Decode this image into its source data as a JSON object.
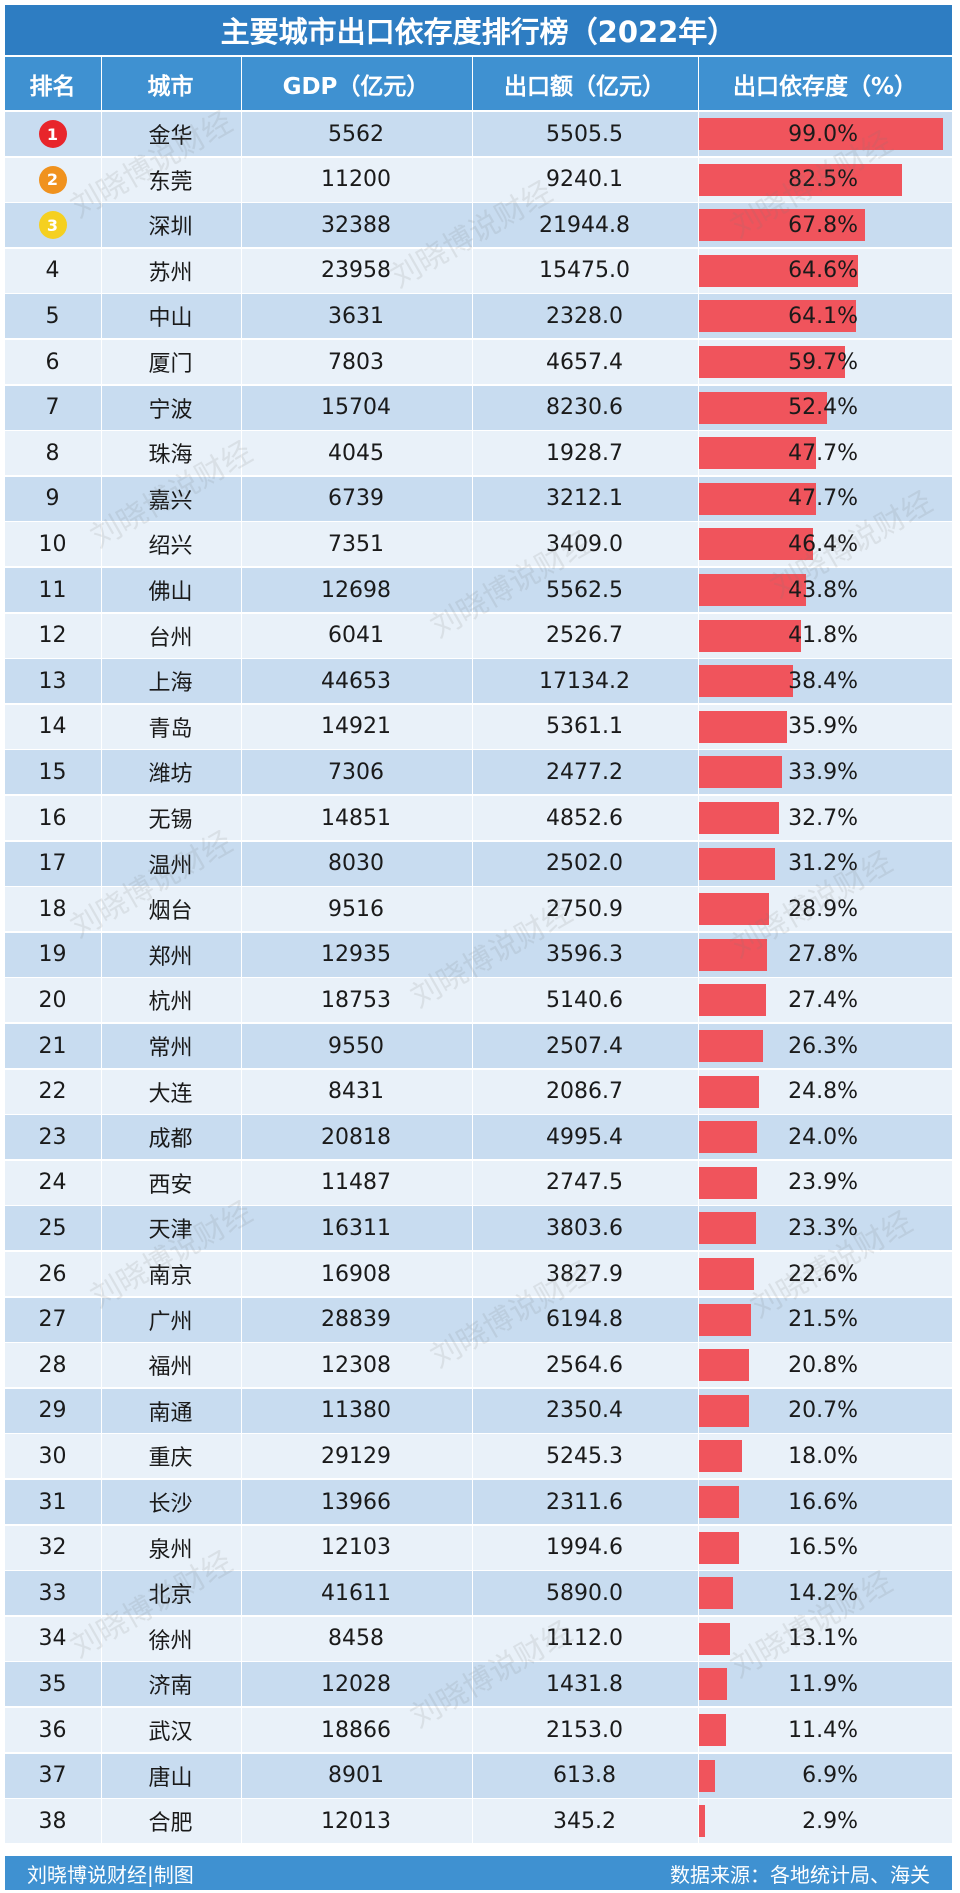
{
  "title": "主要城市出口依存度排行榜（2022年）",
  "headers": {
    "rank": "排名",
    "city": "城市",
    "gdp": "GDP（亿元）",
    "export": "出口额（亿元）",
    "ratio": "出口依存度（%）"
  },
  "footer": {
    "left": "刘晓博说财经|制图",
    "right": "数据来源：各地统计局、海关"
  },
  "watermark": "刘晓博说财经",
  "colors": {
    "title_bg": "#2e7dc2",
    "header_bg": "#3f91d1",
    "row_odd": "#c8dcf0",
    "row_even": "#e9f1f9",
    "bar": "#f0545c",
    "badge_gold": "#f5d020",
    "badge_silver": "#f0921e",
    "badge_first": "#e8252b"
  },
  "chart_data": {
    "type": "table",
    "title": "主要城市出口依存度排行榜（2022年）",
    "columns": [
      "排名",
      "城市",
      "GDP（亿元）",
      "出口额（亿元）",
      "出口依存度（%）"
    ],
    "rows": [
      {
        "rank": "1",
        "city": "金华",
        "gdp": "5562",
        "export": "5505.5",
        "ratio": 99.0,
        "label": "99.0%"
      },
      {
        "rank": "2",
        "city": "东莞",
        "gdp": "11200",
        "export": "9240.1",
        "ratio": 82.5,
        "label": "82.5%"
      },
      {
        "rank": "3",
        "city": "深圳",
        "gdp": "32388",
        "export": "21944.8",
        "ratio": 67.8,
        "label": "67.8%"
      },
      {
        "rank": "4",
        "city": "苏州",
        "gdp": "23958",
        "export": "15475.0",
        "ratio": 64.6,
        "label": "64.6%"
      },
      {
        "rank": "5",
        "city": "中山",
        "gdp": "3631",
        "export": "2328.0",
        "ratio": 64.1,
        "label": "64.1%"
      },
      {
        "rank": "6",
        "city": "厦门",
        "gdp": "7803",
        "export": "4657.4",
        "ratio": 59.7,
        "label": "59.7%"
      },
      {
        "rank": "7",
        "city": "宁波",
        "gdp": "15704",
        "export": "8230.6",
        "ratio": 52.4,
        "label": "52.4%"
      },
      {
        "rank": "8",
        "city": "珠海",
        "gdp": "4045",
        "export": "1928.7",
        "ratio": 47.7,
        "label": "47.7%"
      },
      {
        "rank": "9",
        "city": "嘉兴",
        "gdp": "6739",
        "export": "3212.1",
        "ratio": 47.7,
        "label": "47.7%"
      },
      {
        "rank": "10",
        "city": "绍兴",
        "gdp": "7351",
        "export": "3409.0",
        "ratio": 46.4,
        "label": "46.4%"
      },
      {
        "rank": "11",
        "city": "佛山",
        "gdp": "12698",
        "export": "5562.5",
        "ratio": 43.8,
        "label": "43.8%"
      },
      {
        "rank": "12",
        "city": "台州",
        "gdp": "6041",
        "export": "2526.7",
        "ratio": 41.8,
        "label": "41.8%"
      },
      {
        "rank": "13",
        "city": "上海",
        "gdp": "44653",
        "export": "17134.2",
        "ratio": 38.4,
        "label": "38.4%"
      },
      {
        "rank": "14",
        "city": "青岛",
        "gdp": "14921",
        "export": "5361.1",
        "ratio": 35.9,
        "label": "35.9%"
      },
      {
        "rank": "15",
        "city": "潍坊",
        "gdp": "7306",
        "export": "2477.2",
        "ratio": 33.9,
        "label": "33.9%"
      },
      {
        "rank": "16",
        "city": "无锡",
        "gdp": "14851",
        "export": "4852.6",
        "ratio": 32.7,
        "label": "32.7%"
      },
      {
        "rank": "17",
        "city": "温州",
        "gdp": "8030",
        "export": "2502.0",
        "ratio": 31.2,
        "label": "31.2%"
      },
      {
        "rank": "18",
        "city": "烟台",
        "gdp": "9516",
        "export": "2750.9",
        "ratio": 28.9,
        "label": "28.9%"
      },
      {
        "rank": "19",
        "city": "郑州",
        "gdp": "12935",
        "export": "3596.3",
        "ratio": 27.8,
        "label": "27.8%"
      },
      {
        "rank": "20",
        "city": "杭州",
        "gdp": "18753",
        "export": "5140.6",
        "ratio": 27.4,
        "label": "27.4%"
      },
      {
        "rank": "21",
        "city": "常州",
        "gdp": "9550",
        "export": "2507.4",
        "ratio": 26.3,
        "label": "26.3%"
      },
      {
        "rank": "22",
        "city": "大连",
        "gdp": "8431",
        "export": "2086.7",
        "ratio": 24.8,
        "label": "24.8%"
      },
      {
        "rank": "23",
        "city": "成都",
        "gdp": "20818",
        "export": "4995.4",
        "ratio": 24.0,
        "label": "24.0%"
      },
      {
        "rank": "24",
        "city": "西安",
        "gdp": "11487",
        "export": "2747.5",
        "ratio": 23.9,
        "label": "23.9%"
      },
      {
        "rank": "25",
        "city": "天津",
        "gdp": "16311",
        "export": "3803.6",
        "ratio": 23.3,
        "label": "23.3%"
      },
      {
        "rank": "26",
        "city": "南京",
        "gdp": "16908",
        "export": "3827.9",
        "ratio": 22.6,
        "label": "22.6%"
      },
      {
        "rank": "27",
        "city": "广州",
        "gdp": "28839",
        "export": "6194.8",
        "ratio": 21.5,
        "label": "21.5%"
      },
      {
        "rank": "28",
        "city": "福州",
        "gdp": "12308",
        "export": "2564.6",
        "ratio": 20.8,
        "label": "20.8%"
      },
      {
        "rank": "29",
        "city": "南通",
        "gdp": "11380",
        "export": "2350.4",
        "ratio": 20.7,
        "label": "20.7%"
      },
      {
        "rank": "30",
        "city": "重庆",
        "gdp": "29129",
        "export": "5245.3",
        "ratio": 18.0,
        "label": "18.0%"
      },
      {
        "rank": "31",
        "city": "长沙",
        "gdp": "13966",
        "export": "2311.6",
        "ratio": 16.6,
        "label": "16.6%"
      },
      {
        "rank": "32",
        "city": "泉州",
        "gdp": "12103",
        "export": "1994.6",
        "ratio": 16.5,
        "label": "16.5%"
      },
      {
        "rank": "33",
        "city": "北京",
        "gdp": "41611",
        "export": "5890.0",
        "ratio": 14.2,
        "label": "14.2%"
      },
      {
        "rank": "34",
        "city": "徐州",
        "gdp": "8458",
        "export": "1112.0",
        "ratio": 13.1,
        "label": "13.1%"
      },
      {
        "rank": "35",
        "city": "济南",
        "gdp": "12028",
        "export": "1431.8",
        "ratio": 11.9,
        "label": "11.9%"
      },
      {
        "rank": "36",
        "city": "武汉",
        "gdp": "18866",
        "export": "2153.0",
        "ratio": 11.4,
        "label": "11.4%"
      },
      {
        "rank": "37",
        "city": "唐山",
        "gdp": "8901",
        "export": "613.8",
        "ratio": 6.9,
        "label": "6.9%"
      },
      {
        "rank": "38",
        "city": "合肥",
        "gdp": "12013",
        "export": "345.2",
        "ratio": 2.9,
        "label": "2.9%"
      }
    ],
    "xlim": [
      0,
      100
    ]
  }
}
